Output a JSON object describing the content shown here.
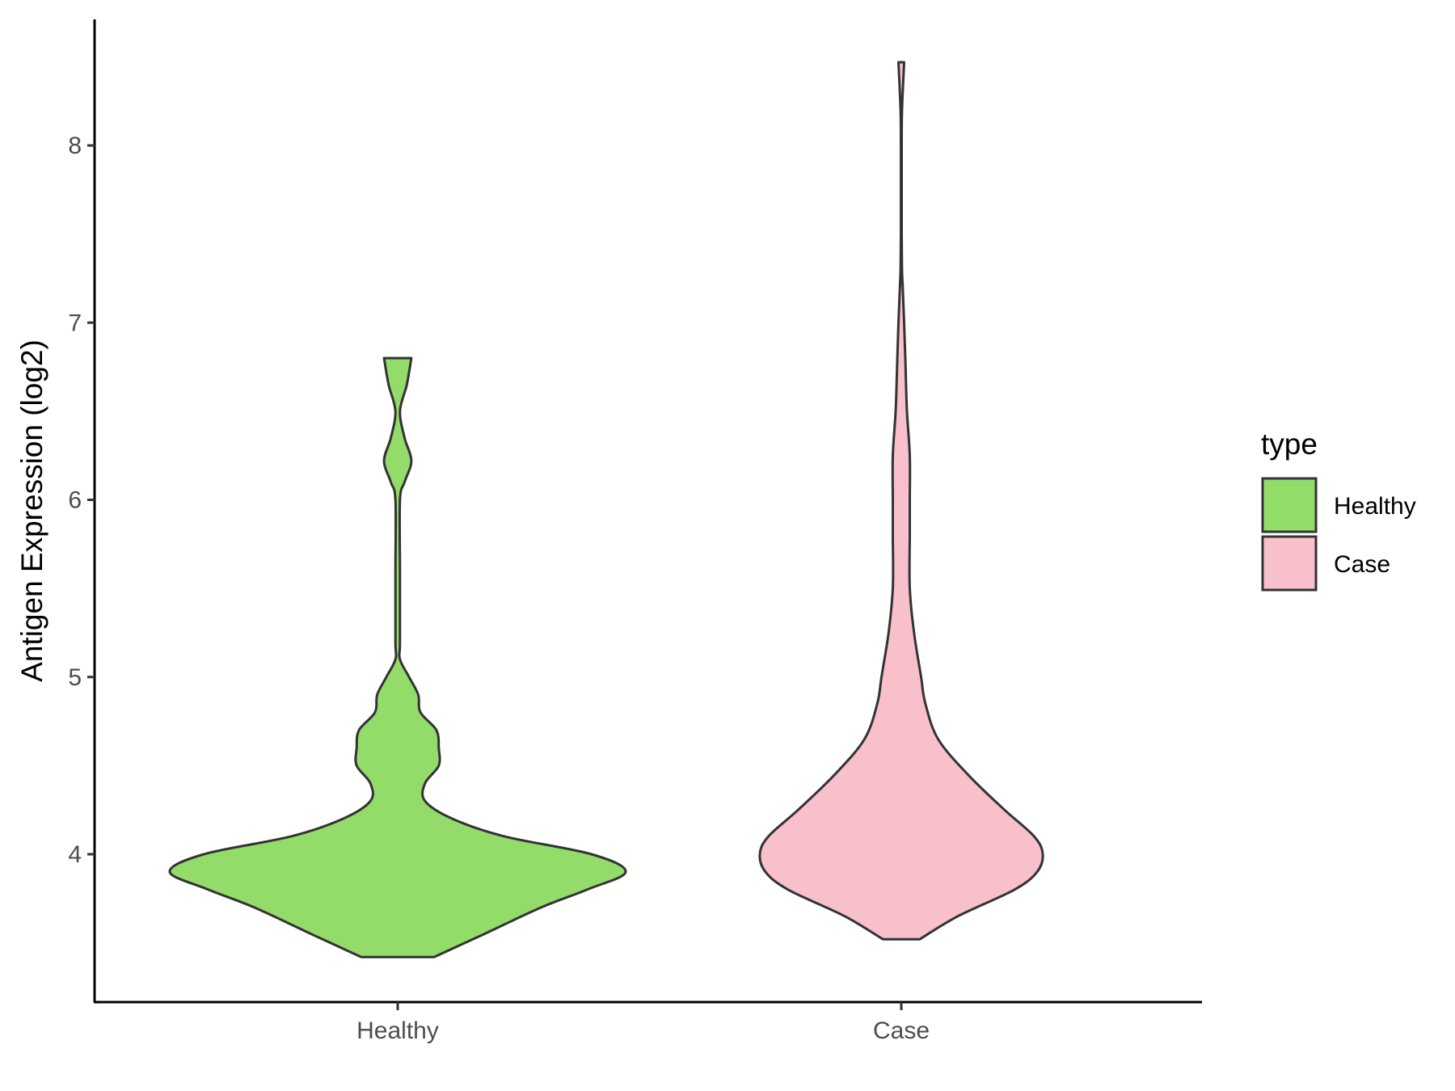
{
  "chart_data": {
    "type": "violin",
    "ylabel": "Antigen Expression (log2)",
    "xlabel": "",
    "ylim": [
      3.25,
      8.6
    ],
    "yticks": [
      4,
      5,
      6,
      7,
      8
    ],
    "categories": [
      "Healthy",
      "Case"
    ],
    "legend": {
      "title": "type",
      "position": "right",
      "entries": [
        {
          "label": "Healthy",
          "color": "#93dc6a"
        },
        {
          "label": "Case",
          "color": "#f8c0cb"
        }
      ]
    },
    "grid": false,
    "series": [
      {
        "category": "Healthy",
        "color": "#93dc6a",
        "min": 3.42,
        "max": 6.8,
        "density_profile": [
          [
            3.42,
            0.16
          ],
          [
            3.55,
            0.38
          ],
          [
            3.7,
            0.63
          ],
          [
            3.8,
            0.83
          ],
          [
            3.9,
            1.0
          ],
          [
            4.0,
            0.85
          ],
          [
            4.1,
            0.47
          ],
          [
            4.2,
            0.24
          ],
          [
            4.3,
            0.12
          ],
          [
            4.4,
            0.12
          ],
          [
            4.5,
            0.18
          ],
          [
            4.6,
            0.18
          ],
          [
            4.7,
            0.17
          ],
          [
            4.8,
            0.1
          ],
          [
            4.9,
            0.09
          ],
          [
            5.0,
            0.05
          ],
          [
            5.1,
            0.01
          ],
          [
            5.2,
            0.01
          ],
          [
            5.6,
            0.01
          ],
          [
            6.0,
            0.01
          ],
          [
            6.1,
            0.03
          ],
          [
            6.22,
            0.06
          ],
          [
            6.35,
            0.03
          ],
          [
            6.5,
            0.01
          ],
          [
            6.65,
            0.04
          ],
          [
            6.8,
            0.06
          ]
        ]
      },
      {
        "category": "Case",
        "color": "#f8c0cb",
        "min": 3.52,
        "max": 8.47,
        "density_profile": [
          [
            3.52,
            0.13
          ],
          [
            3.65,
            0.4
          ],
          [
            3.8,
            0.8
          ],
          [
            3.9,
            0.96
          ],
          [
            4.0,
            1.0
          ],
          [
            4.1,
            0.94
          ],
          [
            4.25,
            0.73
          ],
          [
            4.45,
            0.47
          ],
          [
            4.65,
            0.26
          ],
          [
            4.85,
            0.17
          ],
          [
            5.0,
            0.14
          ],
          [
            5.25,
            0.09
          ],
          [
            5.5,
            0.06
          ],
          [
            5.8,
            0.06
          ],
          [
            6.0,
            0.06
          ],
          [
            6.25,
            0.06
          ],
          [
            6.5,
            0.04
          ],
          [
            6.75,
            0.03
          ],
          [
            7.0,
            0.02
          ],
          [
            7.2,
            0.01
          ],
          [
            7.3,
            0.005
          ],
          [
            7.5,
            0.003
          ],
          [
            8.0,
            0.003
          ],
          [
            8.2,
            0.005
          ],
          [
            8.47,
            0.02
          ]
        ]
      }
    ]
  }
}
